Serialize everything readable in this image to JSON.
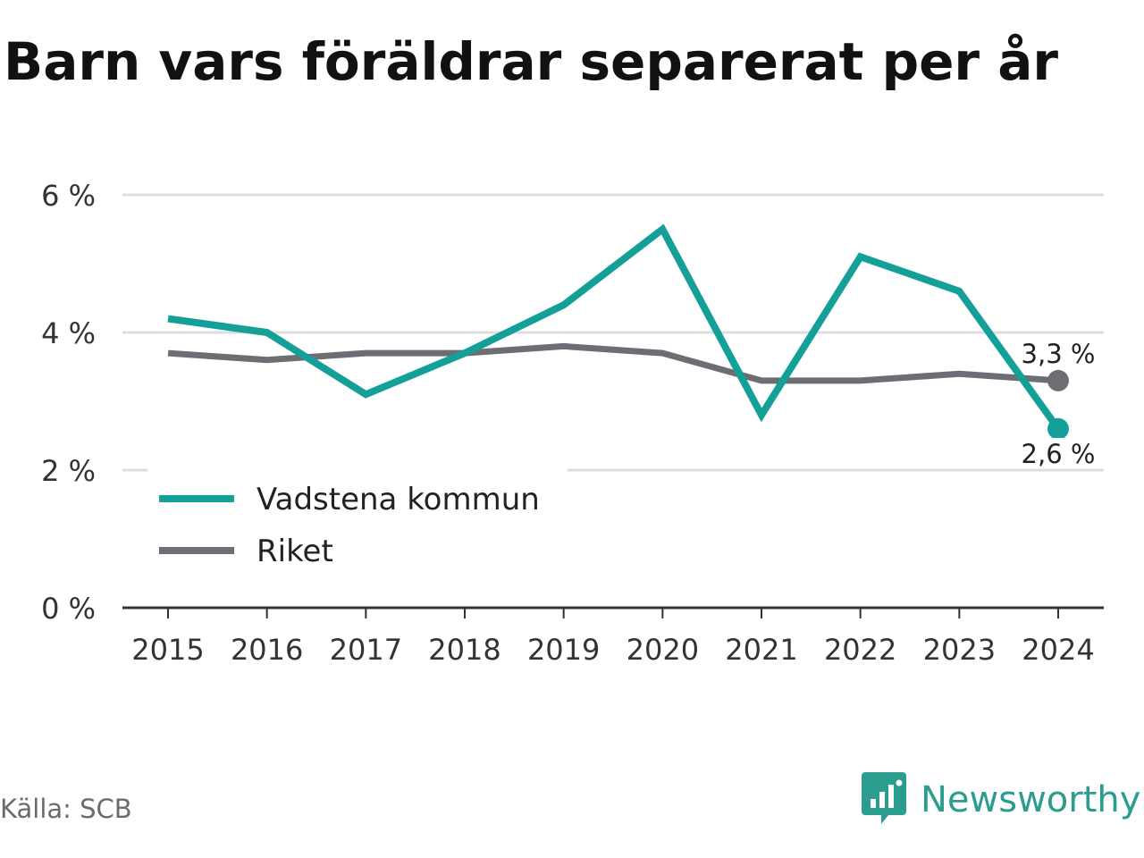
{
  "title": "Barn vars föräldrar separerat per år",
  "source": "Källa: SCB",
  "brand": "Newsworthy",
  "colors": {
    "vadstena": "#14a099",
    "riket": "#6e6d73",
    "grid": "#dddddd",
    "axis": "#333333",
    "brand": "#2a9d8f"
  },
  "chart_data": {
    "type": "line",
    "title": "Barn vars föräldrar separerat per år",
    "x": [
      2015,
      2016,
      2017,
      2018,
      2019,
      2020,
      2021,
      2022,
      2023,
      2024
    ],
    "series": [
      {
        "name": "Vadstena kommun",
        "values": [
          4.2,
          4.0,
          3.1,
          3.7,
          4.4,
          5.5,
          2.8,
          5.1,
          4.6,
          2.6
        ],
        "end_label": "2,6 %"
      },
      {
        "name": "Riket",
        "values": [
          3.7,
          3.6,
          3.7,
          3.7,
          3.8,
          3.7,
          3.3,
          3.3,
          3.4,
          3.3
        ],
        "end_label": "3,3 %"
      }
    ],
    "yticks": [
      0,
      2,
      4,
      6
    ],
    "ytick_labels": [
      "0 %",
      "2 %",
      "4 %",
      "6 %"
    ],
    "ylim": [
      0,
      6
    ],
    "grid": true,
    "legend_position": "bottom-left"
  }
}
